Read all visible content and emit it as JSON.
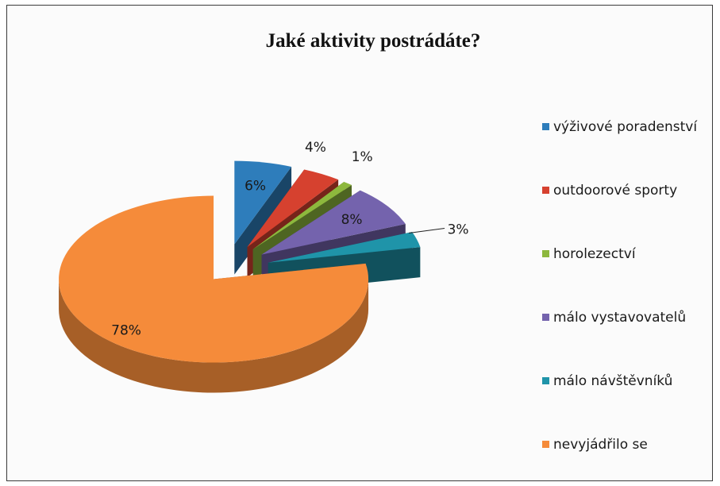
{
  "chart_data": {
    "type": "pie",
    "title": "Jaké aktivity postrádáte?",
    "categories": [
      "výživové poradenství",
      "outdoorové sporty",
      "horolezectví",
      "málo vystavovatelů",
      "málo návštěvníků",
      "nevyjádřilo se"
    ],
    "values": [
      6,
      4,
      1,
      8,
      3,
      78
    ],
    "labels": [
      "6%",
      "4%",
      "1%",
      "8%",
      "3%",
      "78%"
    ],
    "colors": [
      "#2e7dbb",
      "#d6412f",
      "#8db83d",
      "#7463ad",
      "#1f94a9",
      "#f58b3a"
    ],
    "legend_position": "right"
  }
}
